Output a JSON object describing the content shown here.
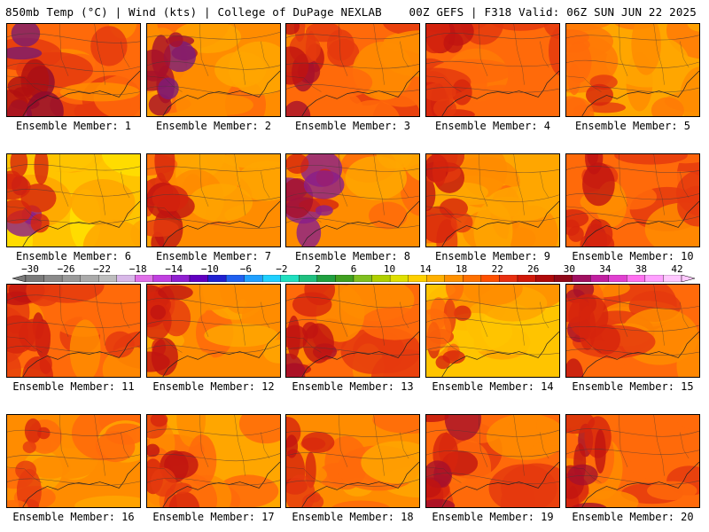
{
  "header": {
    "left": "850mb Temp (°C) | Wind (kts) | College of DuPage NEXLAB",
    "right": "00Z GEFS | F318 Valid: 06Z SUN JUN 22 2025"
  },
  "member_label_prefix": "Ensemble Member: ",
  "members": [
    {
      "label": "Ensemble Member: 1",
      "palette": [
        "#e53a0e",
        "#ff6a0a",
        "#ff8c00"
      ],
      "hot": [
        "#b01010",
        "#8e0a2e",
        "#7a1a6e"
      ]
    },
    {
      "label": "Ensemble Member: 2",
      "palette": [
        "#ff6a0a",
        "#ff8c00",
        "#ffa600"
      ],
      "hot": [
        "#d6240c",
        "#a8102a",
        "#7b1c7c"
      ]
    },
    {
      "label": "Ensemble Member: 3",
      "palette": [
        "#e53a0e",
        "#ff6a0a",
        "#ff8c00"
      ],
      "hot": [
        "#c01410",
        "#e53a0e",
        "#a8102a"
      ]
    },
    {
      "label": "Ensemble Member: 4",
      "palette": [
        "#e53a0e",
        "#ff6a0a",
        "#ff7a06"
      ],
      "hot": [
        "#d6240c",
        "#c01410",
        "#e53a0e"
      ]
    },
    {
      "label": "Ensemble Member: 5",
      "palette": [
        "#ff8c00",
        "#ffa600",
        "#ff7a06"
      ],
      "hot": [
        "#e53a0e",
        "#d6240c",
        "#ff6a0a"
      ]
    },
    {
      "label": "Ensemble Member: 6",
      "palette": [
        "#ffa600",
        "#ffc400",
        "#ffe000"
      ],
      "hot": [
        "#d6240c",
        "#a8102a",
        "#8a1e8a"
      ]
    },
    {
      "label": "Ensemble Member: 7",
      "palette": [
        "#ff6a0a",
        "#ff8c00",
        "#ffa600"
      ],
      "hot": [
        "#d6240c",
        "#e53a0e",
        "#c01410"
      ]
    },
    {
      "label": "Ensemble Member: 8",
      "palette": [
        "#ff6a0a",
        "#ff8c00",
        "#ffa600"
      ],
      "hot": [
        "#d6240c",
        "#a8102a",
        "#8a1e8a"
      ]
    },
    {
      "label": "Ensemble Member: 9",
      "palette": [
        "#ff8c00",
        "#ffa600",
        "#ff6a0a"
      ],
      "hot": [
        "#e53a0e",
        "#d6240c",
        "#c01410"
      ]
    },
    {
      "label": "Ensemble Member: 10",
      "palette": [
        "#e53a0e",
        "#ff6a0a",
        "#ff8c00"
      ],
      "hot": [
        "#c01410",
        "#a8102a",
        "#d6240c"
      ]
    },
    {
      "label": "Ensemble Member: 11",
      "palette": [
        "#e53a0e",
        "#ff6a0a",
        "#ff8c00"
      ],
      "hot": [
        "#d6240c",
        "#c01410",
        "#e53a0e"
      ]
    },
    {
      "label": "Ensemble Member: 12",
      "palette": [
        "#ff6a0a",
        "#ff8c00",
        "#ffa600"
      ],
      "hot": [
        "#d6240c",
        "#c01410",
        "#e53a0e"
      ]
    },
    {
      "label": "Ensemble Member: 13",
      "palette": [
        "#e53a0e",
        "#ff6a0a",
        "#ff8c00"
      ],
      "hot": [
        "#c01410",
        "#a8102a",
        "#d6240c"
      ]
    },
    {
      "label": "Ensemble Member: 14",
      "palette": [
        "#ffa600",
        "#ffc400",
        "#ff8c00"
      ],
      "hot": [
        "#e53a0e",
        "#d6240c",
        "#ff6a0a"
      ]
    },
    {
      "label": "Ensemble Member: 15",
      "palette": [
        "#e53a0e",
        "#ff6a0a",
        "#ff8c00"
      ],
      "hot": [
        "#c01410",
        "#a8102a",
        "#d6240c"
      ]
    },
    {
      "label": "Ensemble Member: 16",
      "palette": [
        "#ff6a0a",
        "#ff8c00",
        "#ffa600"
      ],
      "hot": [
        "#e53a0e",
        "#d6240c",
        "#ff6a0a"
      ]
    },
    {
      "label": "Ensemble Member: 17",
      "palette": [
        "#ff8c00",
        "#ffa600",
        "#ff6a0a"
      ],
      "hot": [
        "#d6240c",
        "#e53a0e",
        "#c01410"
      ]
    },
    {
      "label": "Ensemble Member: 18",
      "palette": [
        "#ff6a0a",
        "#ff8c00",
        "#ffa600"
      ],
      "hot": [
        "#c01410",
        "#d6240c",
        "#e53a0e"
      ]
    },
    {
      "label": "Ensemble Member: 19",
      "palette": [
        "#e53a0e",
        "#ff6a0a",
        "#ff8c00"
      ],
      "hot": [
        "#a8102a",
        "#c01410",
        "#d6240c"
      ]
    },
    {
      "label": "Ensemble Member: 20",
      "palette": [
        "#e53a0e",
        "#ff6a0a",
        "#ff8c00"
      ],
      "hot": [
        "#a8102a",
        "#c01410",
        "#d6240c"
      ]
    }
  ],
  "colorbar": {
    "ticks": [
      "−30",
      "−26",
      "−22",
      "−18",
      "−14",
      "−10",
      "−6",
      "−2",
      "2",
      "6",
      "10",
      "14",
      "18",
      "22",
      "26",
      "30",
      "34",
      "38",
      "42"
    ],
    "colors": [
      "#7a7a7a",
      "#8a8a8a",
      "#9a9a9a",
      "#aaaaaa",
      "#bdbdbd",
      "#d8b8e8",
      "#e070e8",
      "#c040e0",
      "#9020d0",
      "#6000c0",
      "#2020d0",
      "#2060f0",
      "#20a0ff",
      "#20d0ff",
      "#20e0c0",
      "#20c080",
      "#20a040",
      "#40a020",
      "#80c020",
      "#b0d000",
      "#e0e000",
      "#ffd000",
      "#ffb000",
      "#ff9000",
      "#ff7000",
      "#ff5000",
      "#e83010",
      "#d01808",
      "#b00a0a",
      "#900818",
      "#a01060",
      "#c020a0",
      "#e040d0",
      "#ff70f0",
      "#ffa0ff",
      "#ffc8ff"
    ]
  }
}
